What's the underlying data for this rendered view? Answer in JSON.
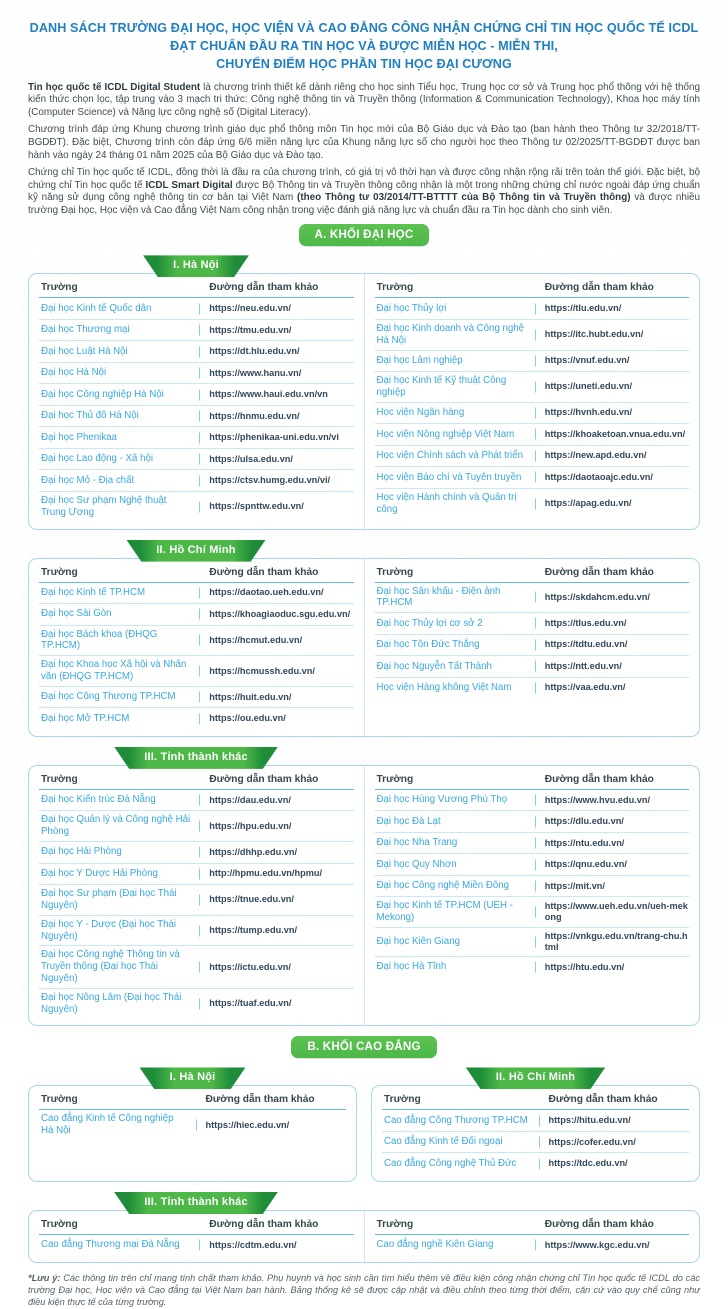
{
  "title": {
    "lines": [
      "DANH SÁCH TRƯỜNG ĐẠI HỌC, HỌC VIỆN VÀ CAO ĐẲNG CÔNG NHẬN CHỨNG CHỈ TIN HỌC QUỐC TẾ ICDL",
      "ĐẠT CHUẨN ĐẦU RA TIN HỌC VÀ ĐƯỢC MIỄN HỌC - MIỄN THI,",
      "CHUYỂN ĐIỂM HỌC PHẦN TIN HỌC ĐẠI CƯƠNG"
    ]
  },
  "intro_paragraphs": [
    {
      "segments": [
        {
          "t": "Tin học quốc tế ICDL Digital Student",
          "b": true
        },
        {
          "t": " là chương trình thiết kế dành riêng cho học sinh Tiểu học, Trung học cơ sở và Trung học phổ thông với hệ thống kiến thức chọn lọc, tập trung vào 3 mạch tri thức: Công nghệ thông tin và Truyền thông (Information & Communication Technology), Khoa học máy tính (Computer Science) và Năng lực công nghệ số (Digital Literacy)."
        }
      ]
    },
    {
      "segments": [
        {
          "t": "Chương trình đáp ứng Khung chương trình giáo dục phổ thông môn Tin học mới của Bộ Giáo dục và Đào tạo (ban hành theo Thông tư 32/2018/TT-BGDĐT). Đặc biệt, Chương trình còn đáp ứng 6/6 miền năng lực của Khung năng lực số cho người học theo Thông tư 02/2025/TT-BGDĐT được ban hành vào ngày 24 tháng 01 năm 2025 của Bộ Giáo dục và Đào tạo."
        }
      ]
    },
    {
      "segments": [
        {
          "t": "Chứng chỉ Tin học quốc tế ICDL, đồng thời là đầu ra của chương trình, có giá trị vô thời hạn và được công nhận rộng rãi trên toàn thế giới. Đặc biệt, bộ chứng chỉ Tin học quốc tế "
        },
        {
          "t": "ICDL Smart Digital",
          "b": true
        },
        {
          "t": " được Bộ Thông tin và Truyền thông công nhận là một trong những chứng chỉ nước ngoài đáp ứng chuẩn kỹ năng sử dụng công nghệ thông tin cơ bản tại Việt Nam "
        },
        {
          "t": "(theo Thông tư 03/2014/TT-BTTTT của Bộ Thông tin và Truyền thông)",
          "b": true
        },
        {
          "t": " và được nhiều trường Đại học, Học viện và Cao đẳng Việt Nam công nhận trong việc đánh giá năng lực và chuẩn đầu ra Tin học dành cho sinh viên."
        }
      ]
    }
  ],
  "table_headers": {
    "school": "Trường",
    "url": "Đường dẫn tham khảo"
  },
  "sections": [
    {
      "id": "khoi-dai-hoc",
      "button_label": "A. KHỐI ĐẠI HỌC",
      "groups": [
        {
          "layout": "full",
          "name": "dai-hoc-ha-noi",
          "ribbon": "I. Hà Nội",
          "pairs": [
            [
              {
                "n": "Đại học Kinh tế Quốc dân",
                "u": "https://neu.edu.vn/"
              },
              {
                "n": "Đại học Thương mại",
                "u": "https://tmu.edu.vn/"
              },
              {
                "n": "Đại học Luật Hà Nội",
                "u": "https://dt.hlu.edu.vn/"
              },
              {
                "n": "Đại học Hà Nội",
                "u": "https://www.hanu.vn/"
              },
              {
                "n": "Đại học Công nghiệp Hà Nội",
                "u": "https://www.haui.edu.vn/vn"
              },
              {
                "n": "Đại học Thủ đô Hà Nội",
                "u": "https://hnmu.edu.vn/"
              },
              {
                "n": "Đại học Phenikaa",
                "u": "https://phenikaa-uni.edu.vn/vi"
              },
              {
                "n": "Đại học Lao động - Xã hội",
                "u": "https://ulsa.edu.vn/"
              },
              {
                "n": "Đại học Mỏ - Địa chất",
                "u": "https://ctsv.humg.edu.vn/vi/"
              },
              {
                "n": "Đại học Sư phạm Nghệ thuật Trung Ương",
                "u": "https://spnttw.edu.vn/"
              }
            ],
            [
              {
                "n": "Đại học Thủy lợi",
                "u": "https://tlu.edu.vn/"
              },
              {
                "n": "Đại học Kinh doanh và Công nghệ Hà Nội",
                "u": "https://itc.hubt.edu.vn/"
              },
              {
                "n": "Đại học Lâm nghiệp",
                "u": "https://vnuf.edu.vn/"
              },
              {
                "n": "Đại học Kinh tế Kỹ thuật Công nghiệp",
                "u": "https://uneti.edu.vn/"
              },
              {
                "n": "Học viện Ngân hàng",
                "u": "https://hvnh.edu.vn/"
              },
              {
                "n": "Học viện Nông nghiệp Việt Nam",
                "u": "https://khoaketoan.vnua.edu.vn/"
              },
              {
                "n": "Học viện Chính sách và Phát triển",
                "u": "https://new.apd.edu.vn/"
              },
              {
                "n": "Học viện Báo chí và Tuyên truyền",
                "u": "https://daotaoajc.edu.vn/"
              },
              {
                "n": "Học viện Hành chính và Quản trị công",
                "u": "https://apag.edu.vn/"
              }
            ]
          ]
        },
        {
          "layout": "full",
          "name": "dai-hoc-ho-chi-minh",
          "ribbon": "II. Hồ Chí Minh",
          "pairs": [
            [
              {
                "n": "Đại học Kinh tế TP.HCM",
                "u": "https://daotao.ueh.edu.vn/"
              },
              {
                "n": "Đại học Sài Gòn",
                "u": "https://khoagiaoduc.sgu.edu.vn/"
              },
              {
                "n": "Đại học Bách khoa (ĐHQG TP.HCM)",
                "u": "https://hcmut.edu.vn/"
              },
              {
                "n": "Đại học Khoa học Xã hội và Nhân văn (ĐHQG TP.HCM)",
                "u": "https://hcmussh.edu.vn/"
              },
              {
                "n": "Đại học Công Thương TP.HCM",
                "u": "https://huit.edu.vn/"
              },
              {
                "n": "Đại học Mở TP.HCM",
                "u": "https://ou.edu.vn/"
              }
            ],
            [
              {
                "n": "Đại học Sân khấu - Điện ảnh TP.HCM",
                "u": "https://skdahcm.edu.vn/"
              },
              {
                "n": "Đại học Thủy lợi cơ sở 2",
                "u": "https://tlus.edu.vn/"
              },
              {
                "n": "Đại học Tôn Đức Thắng",
                "u": "https://tdtu.edu.vn/"
              },
              {
                "n": "Đại học Nguyễn Tất Thành",
                "u": "https://ntt.edu.vn/"
              },
              {
                "n": "Học viện Hàng không Việt Nam",
                "u": "https://vaa.edu.vn/"
              }
            ]
          ]
        },
        {
          "layout": "full",
          "name": "dai-hoc-tinh-thanh-khac",
          "ribbon": "III. Tỉnh thành khác",
          "pairs": [
            [
              {
                "n": "Đại học Kiến trúc Đà Nẵng",
                "u": "https://dau.edu.vn/"
              },
              {
                "n": "Đại học Quản lý và Công nghệ Hải Phòng",
                "u": "https://hpu.edu.vn/"
              },
              {
                "n": "Đại học Hải Phòng",
                "u": "https://dhhp.edu.vn/"
              },
              {
                "n": "Đại học Y Dược Hải Phòng",
                "u": "http://hpmu.edu.vn/hpmu/"
              },
              {
                "n": "Đại học Sư phạm (Đại học Thái Nguyên)",
                "u": "https://tnue.edu.vn/"
              },
              {
                "n": "Đại học Y - Dược (Đại học Thái Nguyên)",
                "u": "https://tump.edu.vn/"
              },
              {
                "n": "Đại học Công nghệ Thông tin và Truyền thông (Đại học Thái Nguyên)",
                "u": "https://ictu.edu.vn/"
              },
              {
                "n": "Đại học Nông Lâm (Đại học Thái Nguyên)",
                "u": "https://tuaf.edu.vn/"
              }
            ],
            [
              {
                "n": "Đại học Hùng Vương Phú Thọ",
                "u": "https://www.hvu.edu.vn/"
              },
              {
                "n": "Đại học Đà Lạt",
                "u": "https://dlu.edu.vn/"
              },
              {
                "n": "Đại học Nha Trang",
                "u": "https://ntu.edu.vn/"
              },
              {
                "n": "Đại học Quy Nhơn",
                "u": "https://qnu.edu.vn/"
              },
              {
                "n": "Đại học Công nghệ Miền Đông",
                "u": "https://mit.vn/"
              },
              {
                "n": "Đại học Kinh tế TP.HCM (UEH - Mekong)",
                "u": "https://www.ueh.edu.vn/ueh-mekong"
              },
              {
                "n": "Đại học Kiên Giang",
                "u": "https://vnkgu.edu.vn/trang-chu.html"
              },
              {
                "n": "Đại học Hà Tĩnh",
                "u": "https://htu.edu.vn/"
              }
            ]
          ]
        }
      ]
    },
    {
      "id": "khoi-cao-dang",
      "button_label": "B. KHỐI CAO ĐẲNG",
      "groups": [
        {
          "layout": "split",
          "halves": [
            {
              "name": "cao-dang-ha-noi",
              "ribbon": "I. Hà Nội",
              "rows": [
                {
                  "n": "Cao đẳng Kinh tế Công nghiệp Hà Nội",
                  "u": "https://hiec.edu.vn/"
                }
              ]
            },
            {
              "name": "cao-dang-ho-chi-minh",
              "ribbon": "II. Hồ Chí Minh",
              "rows": [
                {
                  "n": "Cao đẳng Công Thương TP.HCM",
                  "u": "https://hitu.edu.vn/"
                },
                {
                  "n": "Cao đẳng Kinh tế Đối ngoại",
                  "u": "https://cofer.edu.vn/"
                },
                {
                  "n": "Cao đẳng Công nghệ Thủ Đức",
                  "u": "https://tdc.edu.vn/"
                }
              ]
            }
          ]
        },
        {
          "layout": "full",
          "name": "cao-dang-tinh-thanh-khac",
          "ribbon": "III. Tỉnh thành khác",
          "pairs": [
            [
              {
                "n": "Cao đẳng Thương mại Đà Nẵng",
                "u": "https://cdtm.edu.vn/"
              }
            ],
            [
              {
                "n": "Cao đẳng nghề Kiên Giang",
                "u": "https://www.kgc.edu.vn/"
              }
            ]
          ]
        }
      ]
    }
  ],
  "footer": {
    "prefix": "*Lưu ý:",
    "text": " Các thông tin trên chỉ mang tính chất tham khảo. Phụ huynh và học sinh cần tìm hiểu thêm về điều kiện công nhận chứng chỉ Tin học quốc tế ICDL do các trường Đại học, Học viện và Cao đẳng tại Việt Nam ban hành. Bảng thống kê sẽ được cập nhật và điều chỉnh theo từng thời điểm, căn cứ vào quy chế cũng như điều kiện thực tế của từng trường."
  },
  "colors": {
    "title_blue": "#1f7fc2",
    "accent_green": "#4db848",
    "accent_green_dark": "#1e8c39",
    "school_link_blue": "#38a8de",
    "url_navy": "#33485c",
    "card_border_blue": "#a5d8f0",
    "row_line_blue": "#c9e7f6",
    "header_text": "#37474f",
    "body_text": "#414d52"
  }
}
